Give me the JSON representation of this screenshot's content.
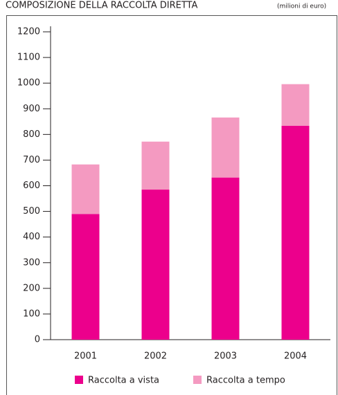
{
  "chart_data": {
    "type": "stacked-bar",
    "title": "COMPOSIZIONE DELLA RACCOLTA DIRETTA",
    "subtitle": "(milioni di euro)",
    "categories": [
      "2001",
      "2002",
      "2003",
      "2004"
    ],
    "series": [
      {
        "name": "Raccolta a vista",
        "color": "#ec008c",
        "values": [
          490,
          585,
          632,
          834
        ]
      },
      {
        "name": "Raccolta a tempo",
        "color": "#f49ac1",
        "values": [
          193,
          187,
          234,
          162
        ]
      }
    ],
    "ylim": [
      0,
      1200
    ],
    "yticks": [
      0,
      100,
      200,
      300,
      400,
      500,
      600,
      700,
      800,
      900,
      1000,
      1100,
      1200
    ],
    "grid": false
  }
}
